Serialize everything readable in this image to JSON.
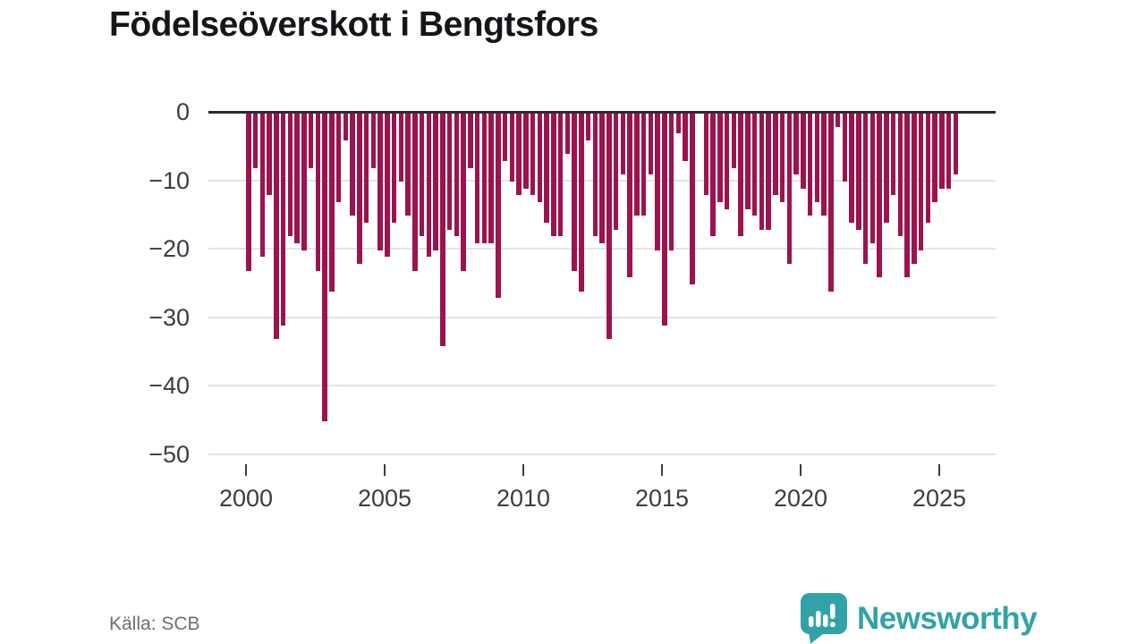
{
  "title": "Födelseöverskott i Bengtsfors",
  "source": "Källa: SCB",
  "logo": {
    "text": "Newsworthy",
    "color": "#31a3a8",
    "icon": "speech-bubble-bar-chart-exclamation"
  },
  "colors": {
    "bar": "#9c134f",
    "grid": "#e4e4e4",
    "zero_line": "#2b2b31",
    "axis_text": "#3c3c44",
    "title_text": "#16161a",
    "source_text": "#6e6e79",
    "logo_teal": "#31a3a8"
  },
  "chart_data": {
    "type": "bar",
    "title": "Födelseöverskott i Bengtsfors",
    "x_unit": "quarter",
    "start_year": 2000,
    "start_quarter": 1,
    "end_year": 2025,
    "end_quarter": 3,
    "ylim": [
      -50,
      0
    ],
    "grid": true,
    "legend": "none",
    "yticks": [
      0,
      -10,
      -20,
      -30,
      -40,
      -50
    ],
    "ytick_labels": [
      "0",
      "−10",
      "−20",
      "−30",
      "−40",
      "−50"
    ],
    "xticks": [
      2000,
      2005,
      2010,
      2015,
      2020,
      2025
    ],
    "xtick_labels": [
      "2000",
      "2005",
      "2010",
      "2015",
      "2020",
      "2025"
    ],
    "series": [
      {
        "name": "Födelseöverskott",
        "values": [
          -23,
          -8,
          -21,
          -12,
          -33,
          -31,
          -18,
          -19,
          -20,
          -8,
          -23,
          -45,
          -26,
          -13,
          -4,
          -15,
          -22,
          -16,
          -8,
          -20,
          -21,
          -16,
          -10,
          -15,
          -23,
          -18,
          -21,
          -20,
          -34,
          -17,
          -18,
          -23,
          -8,
          -19,
          -19,
          -19,
          -27,
          -7,
          -10,
          -12,
          -11,
          -12,
          -13,
          -16,
          -18,
          -18,
          -6,
          -23,
          -26,
          -4,
          -18,
          -19,
          -33,
          -17,
          -9,
          -24,
          -15,
          -15,
          -9,
          -20,
          -31,
          -20,
          -3,
          -7,
          -25,
          0,
          -12,
          -18,
          -13,
          -14,
          -8,
          -18,
          -14,
          -15,
          -17,
          -17,
          -12,
          -13,
          -22,
          -9,
          -11,
          -15,
          -13,
          -15,
          -26,
          -2,
          -10,
          -16,
          -17,
          -22,
          -19,
          -24,
          -16,
          -12,
          -18,
          -24,
          -22,
          -20,
          -16,
          -13,
          -11,
          -11,
          -9
        ]
      }
    ]
  }
}
